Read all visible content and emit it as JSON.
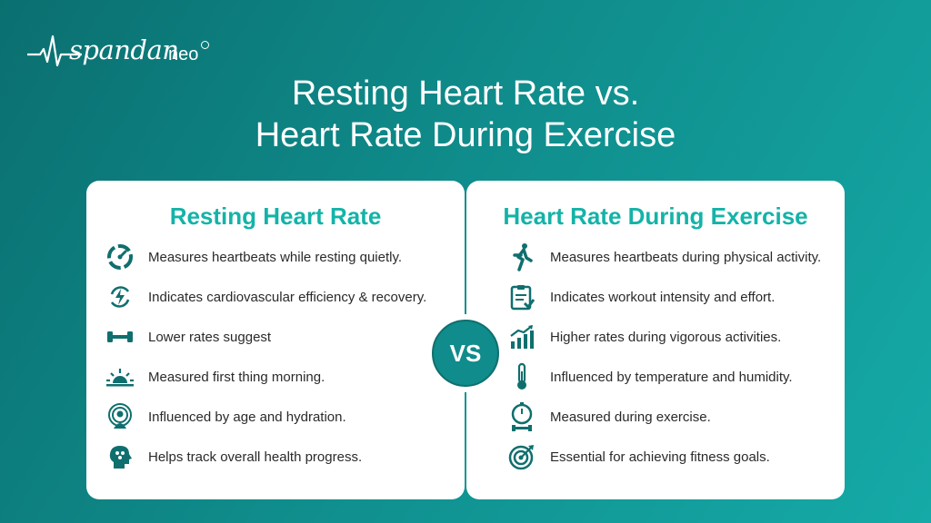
{
  "brand": {
    "name": "spandan",
    "suffix": "neo"
  },
  "title": {
    "line1": "Resting Heart Rate vs.",
    "line2": "Heart Rate During Exercise"
  },
  "colors": {
    "accent": "#14b3a8",
    "icon": "#0f6f6e",
    "bg_start": "#0b6f70",
    "bg_end": "#15aaa7"
  },
  "left_card": {
    "title": "Resting Heart Rate",
    "items": [
      {
        "icon": "gauge-icon",
        "text": "Measures heartbeats while resting quietly."
      },
      {
        "icon": "lightning-cycle-icon",
        "text": "Indicates cardiovascular efficiency & recovery."
      },
      {
        "icon": "dumbbell-icon",
        "text": "Lower rates suggest"
      },
      {
        "icon": "sunrise-icon",
        "text": "Measured first thing morning."
      },
      {
        "icon": "person-signal-icon",
        "text": "Influenced by age and hydration."
      },
      {
        "icon": "head-brain-icon",
        "text": "Helps track overall health progress."
      }
    ]
  },
  "right_card": {
    "title": "Heart Rate During Exercise",
    "items": [
      {
        "icon": "runner-icon",
        "text": "Measures heartbeats during physical activity."
      },
      {
        "icon": "clipboard-icon",
        "text": "Indicates workout intensity and effort."
      },
      {
        "icon": "trend-chart-icon",
        "text": "Higher rates during vigorous activities."
      },
      {
        "icon": "thermometer-icon",
        "text": "Influenced by temperature and humidity."
      },
      {
        "icon": "stopwatch-dumbbell-icon",
        "text": "Measured during exercise."
      },
      {
        "icon": "target-icon",
        "text": "Essential for achieving fitness goals."
      }
    ]
  },
  "vs_label": "VS"
}
